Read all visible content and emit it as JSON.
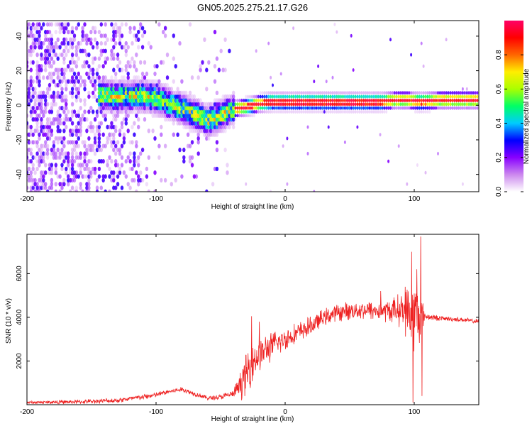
{
  "title": "GN05.2025.275.21.17.G26",
  "chart_data": [
    {
      "type": "heatmap",
      "name": "spectrogram",
      "title": "GN05.2025.275.21.17.G26",
      "xlabel": "Height of straight line (km)",
      "ylabel": "Frequency (Hz)",
      "xlim": [
        -200,
        150
      ],
      "ylim": [
        -50,
        49
      ],
      "xticks": [
        -200,
        -100,
        0,
        100
      ],
      "xtick_labels": [
        "-200",
        "-100",
        "0",
        "100"
      ],
      "yticks": [
        -40,
        -20,
        0,
        20,
        40
      ],
      "ytick_labels": [
        "-40",
        "-20",
        "0",
        "20",
        "40"
      ],
      "ridge": {
        "description": "dominant frequency ridge",
        "x": [
          -145,
          -130,
          -115,
          -100,
          -90,
          -80,
          -70,
          -60,
          -52,
          -45,
          -38,
          -30,
          -20,
          -10,
          0,
          20,
          40,
          60,
          75,
          85,
          95,
          105,
          120,
          150
        ],
        "y": [
          6,
          5,
          6,
          4,
          1,
          -2,
          -5,
          -9,
          -7,
          -4,
          -2,
          -1,
          1,
          2,
          2,
          2,
          2,
          2,
          2,
          3,
          3,
          2,
          3,
          3
        ]
      },
      "colorbar": {
        "label": "Normalized spectral amplitude",
        "range": [
          0,
          1
        ],
        "ticks": [
          0.0,
          0.2,
          0.4,
          0.6,
          0.8
        ],
        "tick_labels": [
          "0.0",
          "0.2",
          "0.4",
          "0.6",
          "0.8"
        ],
        "colormap": [
          "#ffffff",
          "#cc88ee",
          "#8800ff",
          "#0000ff",
          "#00ccff",
          "#00ff66",
          "#aaff00",
          "#ffee00",
          "#ff6600",
          "#ff0000",
          "#ff0066"
        ]
      }
    },
    {
      "type": "line",
      "name": "snr",
      "xlabel": "Height of straight line (km)",
      "ylabel": "SNR (10 * v/v)",
      "xlim": [
        -200,
        150
      ],
      "ylim": [
        0,
        7800
      ],
      "xticks": [
        -200,
        -100,
        0,
        100
      ],
      "xtick_labels": [
        "-200",
        "-100",
        "0",
        "100"
      ],
      "yticks": [
        2000,
        4000,
        6000
      ],
      "ytick_labels": [
        "2000",
        "4000",
        "6000"
      ],
      "color": "#ee2222",
      "envelope": {
        "x": [
          -200,
          -160,
          -130,
          -110,
          -100,
          -90,
          -80,
          -70,
          -60,
          -50,
          -40,
          -35,
          -30,
          -25,
          -20,
          -10,
          0,
          10,
          20,
          30,
          40,
          50,
          60,
          70,
          80,
          90,
          96,
          100,
          104,
          108,
          120,
          135,
          150
        ],
        "y": [
          100,
          130,
          200,
          350,
          450,
          600,
          700,
          500,
          300,
          350,
          500,
          900,
          1400,
          2000,
          2300,
          2700,
          3000,
          3300,
          3600,
          4000,
          4200,
          4300,
          4350,
          4300,
          4300,
          4350,
          4200,
          4000,
          4100,
          4050,
          3950,
          3900,
          3800
        ]
      },
      "noise": {
        "x": [
          -200,
          -110,
          -60,
          -40,
          -30,
          -20,
          0,
          30,
          60,
          80,
          90,
          95,
          100,
          104,
          108,
          120,
          150
        ],
        "amp": [
          80,
          150,
          120,
          200,
          1200,
          900,
          600,
          450,
          500,
          600,
          900,
          1400,
          2000,
          1800,
          200,
          130,
          130
        ]
      },
      "spikes": [
        {
          "x": -26,
          "y": 4050
        },
        {
          "x": -20,
          "y": 3800
        },
        {
          "x": 74,
          "y": 5200
        },
        {
          "x": 93,
          "y": 5400
        },
        {
          "x": 98,
          "y": 7000
        },
        {
          "x": 99,
          "y": 100
        },
        {
          "x": 102,
          "y": 6200
        },
        {
          "x": 105,
          "y": 7700
        },
        {
          "x": 106,
          "y": 400
        }
      ]
    }
  ]
}
